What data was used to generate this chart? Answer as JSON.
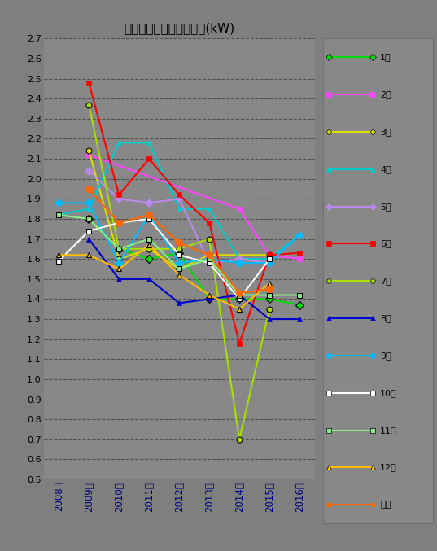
{
  "title": "日照時間あたりの発電量(kW)",
  "years": [
    "2008年",
    "2009年",
    "2010年",
    "2011年",
    "2012年",
    "2013年",
    "2014年",
    "2015年",
    "2016年"
  ],
  "year_vals": [
    2008,
    2009,
    2010,
    2011,
    2012,
    2013,
    2014,
    2015,
    2016
  ],
  "ylim": [
    0.5,
    2.7
  ],
  "yticks": [
    0.5,
    0.6,
    0.7,
    0.8,
    0.9,
    1.0,
    1.1,
    1.2,
    1.3,
    1.4,
    1.5,
    1.6,
    1.7,
    1.8,
    1.9,
    2.0,
    2.1,
    2.2,
    2.3,
    2.4,
    2.5,
    2.6,
    2.7
  ],
  "series": [
    {
      "label": "1月",
      "color": "#00dd00",
      "marker": "D",
      "markersize": 5,
      "linewidth": 1.5,
      "data": [
        null,
        1.8,
        1.65,
        1.6,
        1.63,
        1.4,
        1.4,
        1.4,
        1.37
      ]
    },
    {
      "label": "2月",
      "color": "#ff44ff",
      "marker": "s",
      "markersize": 5,
      "linewidth": 1.5,
      "data": [
        null,
        2.12,
        null,
        null,
        null,
        null,
        1.85,
        1.62,
        1.6
      ]
    },
    {
      "label": "3月",
      "color": "#dddd00",
      "marker": "o",
      "markersize": 5,
      "linewidth": 1.5,
      "data": [
        null,
        2.14,
        1.6,
        1.65,
        1.55,
        1.62,
        null,
        1.62,
        null
      ]
    },
    {
      "label": "4月",
      "color": "#00cccc",
      "marker": "^",
      "markersize": 5,
      "linewidth": 1.5,
      "data": [
        1.82,
        1.85,
        2.18,
        2.18,
        1.85,
        1.85,
        1.6,
        1.6,
        1.72
      ]
    },
    {
      "label": "5月",
      "color": "#bb88ee",
      "marker": "D",
      "markersize": 5,
      "linewidth": 1.5,
      "data": [
        null,
        2.04,
        1.9,
        1.88,
        1.9,
        1.58,
        1.6,
        1.58,
        null
      ]
    },
    {
      "label": "6月",
      "color": "#ff0000",
      "marker": "s",
      "markersize": 5,
      "linewidth": 1.5,
      "data": [
        null,
        2.48,
        1.92,
        2.1,
        1.92,
        1.78,
        1.18,
        1.62,
        1.63
      ]
    },
    {
      "label": "7月",
      "color": "#aadd00",
      "marker": "o",
      "markersize": 5,
      "linewidth": 1.5,
      "data": [
        null,
        2.37,
        1.65,
        null,
        1.65,
        1.7,
        0.7,
        1.35,
        null
      ]
    },
    {
      "label": "8月",
      "color": "#0000cc",
      "marker": "^",
      "markersize": 5,
      "linewidth": 1.5,
      "data": [
        null,
        1.7,
        1.5,
        1.5,
        1.38,
        1.4,
        1.42,
        1.3,
        1.3
      ]
    },
    {
      "label": "9月",
      "color": "#00bbff",
      "marker": "D",
      "markersize": 5,
      "linewidth": 1.5,
      "data": [
        1.88,
        1.88,
        1.58,
        1.82,
        1.58,
        1.6,
        1.58,
        1.58,
        1.72
      ]
    },
    {
      "label": "10月",
      "color": "#ffffff",
      "marker": "s",
      "markersize": 5,
      "linewidth": 1.5,
      "data": [
        1.59,
        1.74,
        1.78,
        1.8,
        1.62,
        1.58,
        1.4,
        1.6,
        null
      ]
    },
    {
      "label": "11月",
      "color": "#88ee88",
      "marker": "s",
      "markersize": 5,
      "linewidth": 1.5,
      "data": [
        1.82,
        1.8,
        1.65,
        1.7,
        1.55,
        1.6,
        1.42,
        1.42,
        1.42
      ]
    },
    {
      "label": "12月",
      "color": "#ffbb00",
      "marker": "^",
      "markersize": 5,
      "linewidth": 1.5,
      "data": [
        1.62,
        1.62,
        1.55,
        1.67,
        1.52,
        1.42,
        1.35,
        1.48,
        null
      ]
    },
    {
      "label": "平均",
      "color": "#ff6600",
      "marker": "o",
      "markersize": 6,
      "linewidth": 1.5,
      "data": [
        null,
        1.95,
        1.78,
        1.82,
        1.68,
        1.62,
        1.43,
        1.45,
        null
      ]
    }
  ],
  "fig_bg": "#7f7f7f",
  "plot_bg": "#888888",
  "grid_color": "#505050",
  "xtick_color": "#000080",
  "ytick_color": "#000000",
  "title_color": "#000000",
  "legend_bg": "#888888",
  "legend_edge": "#666666"
}
